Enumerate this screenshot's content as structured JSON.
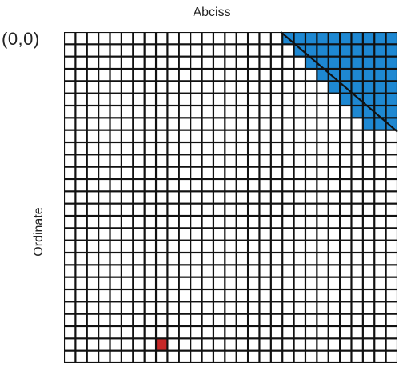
{
  "diagram": {
    "title": "Abciss",
    "origin_label": "(0,0)",
    "ylabel": "Ordinate",
    "grid": {
      "cols": 29,
      "rows": 27
    },
    "highlighted_cells": [
      {
        "name": "highlighted-cell-red",
        "col": 8,
        "row": 25,
        "color": "#c62828"
      }
    ],
    "blue_region": {
      "start_col": 19,
      "cols": 10,
      "rows": 8,
      "color": "#1e88d2"
    },
    "colors": {
      "cell_fill": "#ffffff",
      "grid_line": "#111111",
      "blue": "#1e88d2",
      "red": "#c62828"
    }
  }
}
